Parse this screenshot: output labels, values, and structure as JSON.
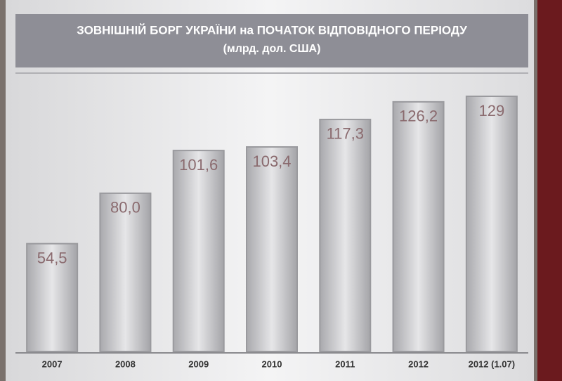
{
  "chart_data": {
    "type": "bar",
    "title": "ЗОВНІШНІЙ БОРГ УКРАЇНИ на ПОЧАТОК ВІДПОВІДНОГО ПЕРІОДУ",
    "subtitle": "(млрд. дол. США)",
    "categories": [
      "2007",
      "2008",
      "2009",
      "2010",
      "2011",
      "2012",
      "2012 (1.07)"
    ],
    "values": [
      54.5,
      80.0,
      101.6,
      103.4,
      117.3,
      126.2,
      129
    ],
    "value_labels": [
      "54,5",
      "80,0",
      "101,6",
      "103,4",
      "117,3",
      "126,2",
      "129"
    ],
    "color": "#c9c9cc"
  }
}
